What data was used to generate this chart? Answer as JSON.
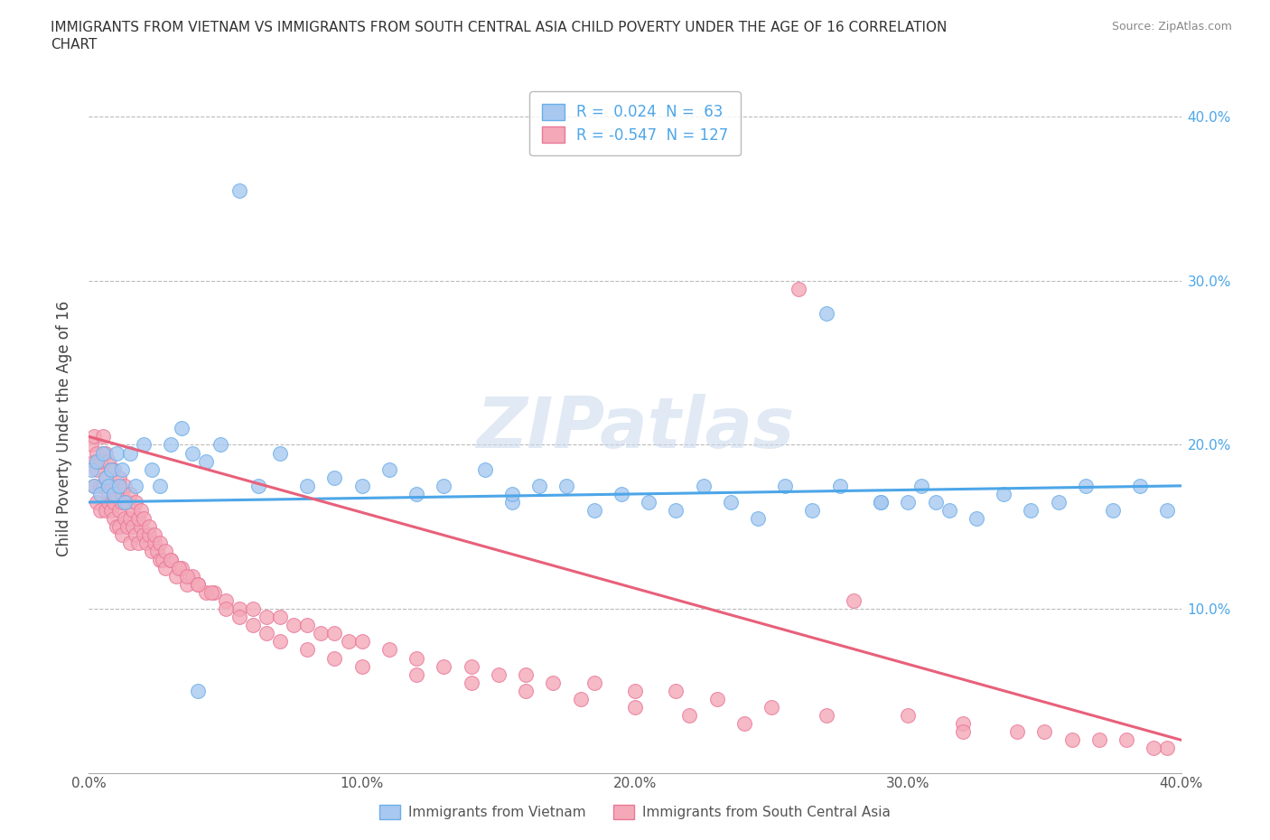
{
  "title_line1": "IMMIGRANTS FROM VIETNAM VS IMMIGRANTS FROM SOUTH CENTRAL ASIA CHILD POVERTY UNDER THE AGE OF 16 CORRELATION",
  "title_line2": "CHART",
  "source": "Source: ZipAtlas.com",
  "ylabel": "Child Poverty Under the Age of 16",
  "xlim": [
    0.0,
    0.4
  ],
  "ylim": [
    0.0,
    0.42
  ],
  "xticks": [
    0.0,
    0.1,
    0.2,
    0.3,
    0.4
  ],
  "yticks": [
    0.1,
    0.2,
    0.3,
    0.4
  ],
  "xtick_labels": [
    "0.0%",
    "10.0%",
    "20.0%",
    "30.0%",
    "40.0%"
  ],
  "ytick_labels": [
    "10.0%",
    "20.0%",
    "30.0%",
    "40.0%"
  ],
  "vietnam_color": "#a8c8f0",
  "vietnam_edge": "#6aaee8",
  "vietnam_line_color": "#4da6e8",
  "sca_color": "#f4a8b8",
  "sca_edge": "#e87898",
  "sca_line_color": "#e8607a",
  "R_vietnam": 0.024,
  "N_vietnam": 63,
  "R_sca": -0.547,
  "N_sca": 127,
  "background_color": "#ffffff",
  "grid_color": "#bbbbbb",
  "vietnam_line_y0": 0.165,
  "vietnam_line_y1": 0.175,
  "sca_line_y0": 0.205,
  "sca_line_y1": 0.02,
  "vietnam_x": [
    0.001,
    0.002,
    0.003,
    0.004,
    0.005,
    0.006,
    0.007,
    0.008,
    0.009,
    0.01,
    0.011,
    0.012,
    0.013,
    0.015,
    0.017,
    0.02,
    0.023,
    0.026,
    0.03,
    0.034,
    0.038,
    0.043,
    0.048,
    0.055,
    0.062,
    0.07,
    0.08,
    0.09,
    0.1,
    0.11,
    0.12,
    0.13,
    0.145,
    0.155,
    0.165,
    0.175,
    0.185,
    0.195,
    0.205,
    0.215,
    0.225,
    0.235,
    0.245,
    0.255,
    0.265,
    0.275,
    0.29,
    0.305,
    0.315,
    0.325,
    0.335,
    0.345,
    0.355,
    0.365,
    0.375,
    0.385,
    0.395,
    0.27,
    0.29,
    0.31,
    0.155,
    0.04,
    0.3
  ],
  "vietnam_y": [
    0.185,
    0.175,
    0.19,
    0.17,
    0.195,
    0.18,
    0.175,
    0.185,
    0.17,
    0.195,
    0.175,
    0.185,
    0.165,
    0.195,
    0.175,
    0.2,
    0.185,
    0.175,
    0.2,
    0.21,
    0.195,
    0.19,
    0.2,
    0.355,
    0.175,
    0.195,
    0.175,
    0.18,
    0.175,
    0.185,
    0.17,
    0.175,
    0.185,
    0.165,
    0.175,
    0.175,
    0.16,
    0.17,
    0.165,
    0.16,
    0.175,
    0.165,
    0.155,
    0.175,
    0.16,
    0.175,
    0.165,
    0.175,
    0.16,
    0.155,
    0.17,
    0.16,
    0.165,
    0.175,
    0.16,
    0.175,
    0.16,
    0.28,
    0.165,
    0.165,
    0.17,
    0.05,
    0.165
  ],
  "sca_x": [
    0.001,
    0.002,
    0.002,
    0.003,
    0.003,
    0.004,
    0.004,
    0.005,
    0.005,
    0.006,
    0.006,
    0.007,
    0.007,
    0.008,
    0.008,
    0.009,
    0.009,
    0.01,
    0.01,
    0.011,
    0.011,
    0.012,
    0.012,
    0.013,
    0.014,
    0.015,
    0.015,
    0.016,
    0.017,
    0.018,
    0.019,
    0.02,
    0.021,
    0.022,
    0.023,
    0.024,
    0.025,
    0.026,
    0.027,
    0.028,
    0.03,
    0.032,
    0.034,
    0.036,
    0.038,
    0.04,
    0.043,
    0.046,
    0.05,
    0.055,
    0.06,
    0.065,
    0.07,
    0.075,
    0.08,
    0.085,
    0.09,
    0.095,
    0.1,
    0.11,
    0.12,
    0.13,
    0.14,
    0.15,
    0.16,
    0.17,
    0.185,
    0.2,
    0.215,
    0.23,
    0.25,
    0.27,
    0.3,
    0.32,
    0.34,
    0.36,
    0.38,
    0.395,
    0.002,
    0.003,
    0.004,
    0.005,
    0.006,
    0.007,
    0.008,
    0.009,
    0.01,
    0.011,
    0.012,
    0.013,
    0.014,
    0.015,
    0.016,
    0.017,
    0.018,
    0.019,
    0.02,
    0.022,
    0.024,
    0.026,
    0.028,
    0.03,
    0.033,
    0.036,
    0.04,
    0.045,
    0.05,
    0.055,
    0.06,
    0.065,
    0.07,
    0.08,
    0.09,
    0.1,
    0.12,
    0.14,
    0.16,
    0.18,
    0.2,
    0.22,
    0.24,
    0.26,
    0.28,
    0.32,
    0.35,
    0.37,
    0.39
  ],
  "sca_y": [
    0.2,
    0.19,
    0.175,
    0.185,
    0.165,
    0.175,
    0.16,
    0.175,
    0.195,
    0.16,
    0.18,
    0.17,
    0.165,
    0.16,
    0.175,
    0.165,
    0.155,
    0.17,
    0.15,
    0.16,
    0.15,
    0.165,
    0.145,
    0.155,
    0.15,
    0.155,
    0.14,
    0.15,
    0.145,
    0.14,
    0.15,
    0.145,
    0.14,
    0.145,
    0.135,
    0.14,
    0.135,
    0.13,
    0.13,
    0.125,
    0.13,
    0.12,
    0.125,
    0.115,
    0.12,
    0.115,
    0.11,
    0.11,
    0.105,
    0.1,
    0.1,
    0.095,
    0.095,
    0.09,
    0.09,
    0.085,
    0.085,
    0.08,
    0.08,
    0.075,
    0.07,
    0.065,
    0.065,
    0.06,
    0.06,
    0.055,
    0.055,
    0.05,
    0.05,
    0.045,
    0.04,
    0.035,
    0.035,
    0.03,
    0.025,
    0.02,
    0.02,
    0.015,
    0.205,
    0.195,
    0.19,
    0.205,
    0.195,
    0.19,
    0.185,
    0.185,
    0.175,
    0.18,
    0.17,
    0.175,
    0.165,
    0.17,
    0.16,
    0.165,
    0.155,
    0.16,
    0.155,
    0.15,
    0.145,
    0.14,
    0.135,
    0.13,
    0.125,
    0.12,
    0.115,
    0.11,
    0.1,
    0.095,
    0.09,
    0.085,
    0.08,
    0.075,
    0.07,
    0.065,
    0.06,
    0.055,
    0.05,
    0.045,
    0.04,
    0.035,
    0.03,
    0.295,
    0.105,
    0.025,
    0.025,
    0.02,
    0.015
  ]
}
